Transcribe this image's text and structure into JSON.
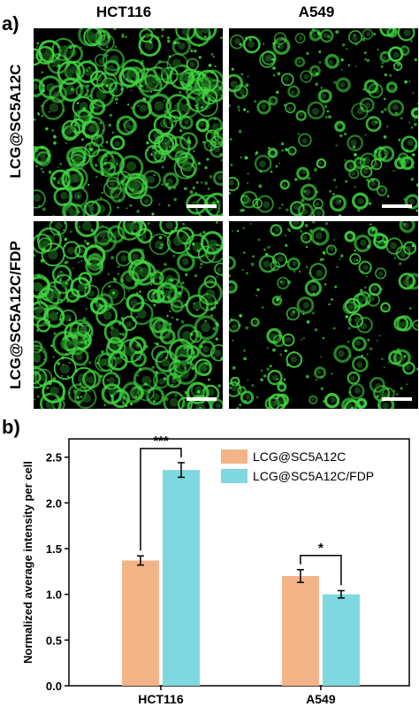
{
  "panel_a": {
    "label": "a)",
    "columns": [
      "HCT116",
      "A549"
    ],
    "rows": [
      "LCG@SC5A12C",
      "LCG@SC5A12C/FDP"
    ],
    "fluorescence_color": "#3fd43f",
    "background_color": "#000000",
    "density": [
      [
        0.95,
        0.55
      ],
      [
        1.0,
        0.55
      ]
    ]
  },
  "panel_b": {
    "label": "b)"
  },
  "chart_data": {
    "type": "bar",
    "categories": [
      "HCT116",
      "A549"
    ],
    "series": [
      {
        "name": "LCG@SC5A12C",
        "color": "#f2b486",
        "values": [
          1.37,
          1.2
        ],
        "errors": [
          0.05,
          0.07
        ]
      },
      {
        "name": "LCG@SC5A12C/FDP",
        "color": "#7fd7df",
        "values": [
          2.36,
          1.0
        ],
        "errors": [
          0.08,
          0.04
        ]
      }
    ],
    "ylabel": "Normalized average intensity per cell",
    "xlabel": "",
    "ylim": [
      0,
      2.7
    ],
    "yticks": [
      "0.0",
      "0.5",
      "1.0",
      "1.5",
      "2.0",
      "2.5"
    ],
    "ytick_values": [
      0,
      0.5,
      1.0,
      1.5,
      2.0,
      2.5
    ],
    "legend_position": "top-right",
    "significance": [
      {
        "category": "HCT116",
        "label": "***"
      },
      {
        "category": "A549",
        "label": "*"
      }
    ]
  }
}
